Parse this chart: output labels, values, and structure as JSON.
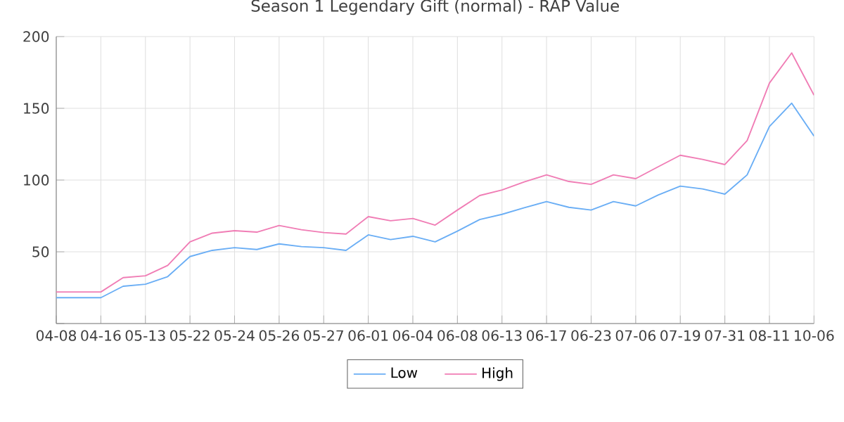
{
  "chart_data": {
    "type": "line",
    "title": "Season 1 Legendary Gift (normal) - RAP Value",
    "categories": [
      "04-08",
      null,
      "04-16",
      null,
      "05-13",
      null,
      "05-22",
      null,
      "05-24",
      null,
      "05-26",
      null,
      "05-27",
      null,
      "06-01",
      null,
      "06-04",
      null,
      "06-08",
      null,
      "06-13",
      null,
      "06-17",
      null,
      "06-23",
      null,
      "07-06",
      null,
      "07-19",
      null,
      "07-31",
      null,
      "08-11",
      null,
      "10-06"
    ],
    "series": [
      {
        "name": "Low",
        "color": "#6aaef5",
        "values": [
          18,
          18,
          18,
          26,
          27.4,
          32.7,
          46.7,
          51,
          52.9,
          51.6,
          55.5,
          53.6,
          52.9,
          51,
          61.8,
          58.5,
          60.8,
          56.9,
          64.4,
          72.5,
          76.1,
          80.7,
          85,
          81,
          79.1,
          85,
          82,
          89.5,
          95.8,
          93.8,
          90.2,
          103.6,
          137.3,
          153.6,
          130.7
        ]
      },
      {
        "name": "High",
        "color": "#f07db5",
        "values": [
          22,
          22,
          22,
          32,
          33.3,
          40.5,
          56.9,
          63,
          64.7,
          63.7,
          68.3,
          65.4,
          63.4,
          62.4,
          74.5,
          71.6,
          73.2,
          68.6,
          79.1,
          89.2,
          93.1,
          98.7,
          103.6,
          99,
          97,
          103.6,
          101,
          109.2,
          117.3,
          114.4,
          110.8,
          127.5,
          167.6,
          188.6,
          159.2
        ]
      }
    ],
    "ylim": [
      0,
      200
    ],
    "yticks": [
      {
        "value": 0,
        "label": null
      },
      50,
      100,
      150,
      200
    ],
    "grid": true,
    "legend": "bottom",
    "marker": "none",
    "line_style": "solid"
  }
}
